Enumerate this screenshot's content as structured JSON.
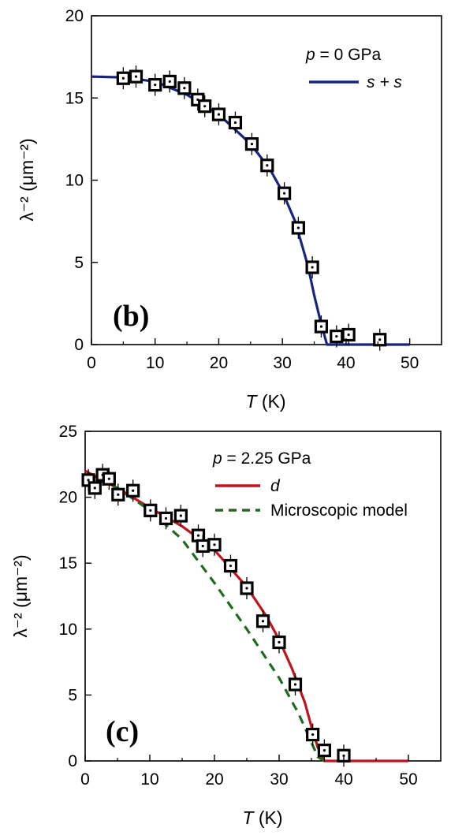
{
  "chart_data": [
    {
      "type": "scatter",
      "panel_label": "(b)",
      "xlabel": {
        "sym": "T",
        "unit": " (K)"
      },
      "ylabel": "λ⁻² (μm⁻²)",
      "xlim": [
        0,
        55
      ],
      "ylim": [
        0,
        20
      ],
      "xticks": [
        "0",
        "10",
        "20",
        "30",
        "40",
        "50"
      ],
      "yticks": [
        "0",
        "5",
        "10",
        "15",
        "20"
      ],
      "legend_title": {
        "sym": "p",
        "rest": " = 0 GPa"
      },
      "legend_position": "top-right",
      "series": [
        {
          "name": "s + s",
          "kind": "line",
          "color": "#1a237e",
          "x": [
            0,
            5,
            10,
            15,
            20,
            25,
            28,
            30,
            32,
            34,
            35,
            36,
            37,
            40,
            45,
            50
          ],
          "y": [
            16.3,
            16.25,
            16.0,
            15.2,
            14.0,
            12.2,
            10.7,
            9.3,
            7.5,
            4.8,
            3.0,
            1.4,
            0,
            0,
            0,
            0
          ]
        },
        {
          "kind": "points",
          "color": "#000000",
          "x": [
            5,
            7,
            10,
            12.3,
            14.6,
            16.7,
            17.8,
            20,
            22.6,
            25.2,
            27.6,
            30.3,
            32.5,
            34.7,
            36.1,
            38.5,
            40.4,
            45.3
          ],
          "y": [
            16.2,
            16.3,
            15.8,
            16.0,
            15.6,
            14.9,
            14.5,
            14.0,
            13.5,
            12.2,
            10.9,
            9.2,
            7.1,
            4.7,
            1.1,
            0.5,
            0.6,
            0.3
          ]
        }
      ]
    },
    {
      "type": "scatter",
      "panel_label": "(c)",
      "xlabel": {
        "sym": "T",
        "unit": " (K)"
      },
      "ylabel": "λ⁻² (μm⁻²)",
      "xlim": [
        0,
        55
      ],
      "ylim": [
        0,
        25
      ],
      "xticks": [
        "0",
        "10",
        "20",
        "30",
        "40",
        "50"
      ],
      "yticks": [
        "0",
        "5",
        "10",
        "15",
        "20",
        "25"
      ],
      "legend_title": {
        "sym": "p",
        "rest": " = 2.25 GPa"
      },
      "legend_position": "top-right",
      "series": [
        {
          "name": "d",
          "kind": "line",
          "color": "#c0141a",
          "x": [
            0,
            5,
            10,
            15,
            20,
            25,
            28,
            30,
            32,
            34,
            35,
            36,
            37,
            40,
            45,
            50
          ],
          "y": [
            22.0,
            20.7,
            19.2,
            17.8,
            16.0,
            13.2,
            11.0,
            9.2,
            7.0,
            4.4,
            2.6,
            1.0,
            0,
            0,
            0,
            0
          ]
        },
        {
          "name": "Microscopic model",
          "kind": "dashed",
          "color": "#1e6b1e",
          "x": [
            0,
            5,
            10,
            15,
            20,
            25,
            30,
            33,
            35,
            36,
            37
          ],
          "y": [
            21.7,
            20.7,
            19.0,
            16.8,
            13.5,
            10.0,
            6.3,
            3.6,
            1.4,
            0.3,
            0
          ]
        },
        {
          "kind": "points",
          "color": "#000000",
          "x": [
            0.5,
            1.5,
            2.7,
            3.7,
            5.1,
            7.4,
            10.1,
            12.5,
            14.8,
            17.5,
            18.2,
            20,
            22.5,
            25,
            27.5,
            30,
            32.5,
            35.2,
            37,
            40
          ],
          "y": [
            21.3,
            20.7,
            21.7,
            21.4,
            20.2,
            20.5,
            19.0,
            18.4,
            18.6,
            17.1,
            16.3,
            16.4,
            14.8,
            13.1,
            10.6,
            9.0,
            5.8,
            2.0,
            0.8,
            0.4
          ]
        }
      ]
    }
  ]
}
